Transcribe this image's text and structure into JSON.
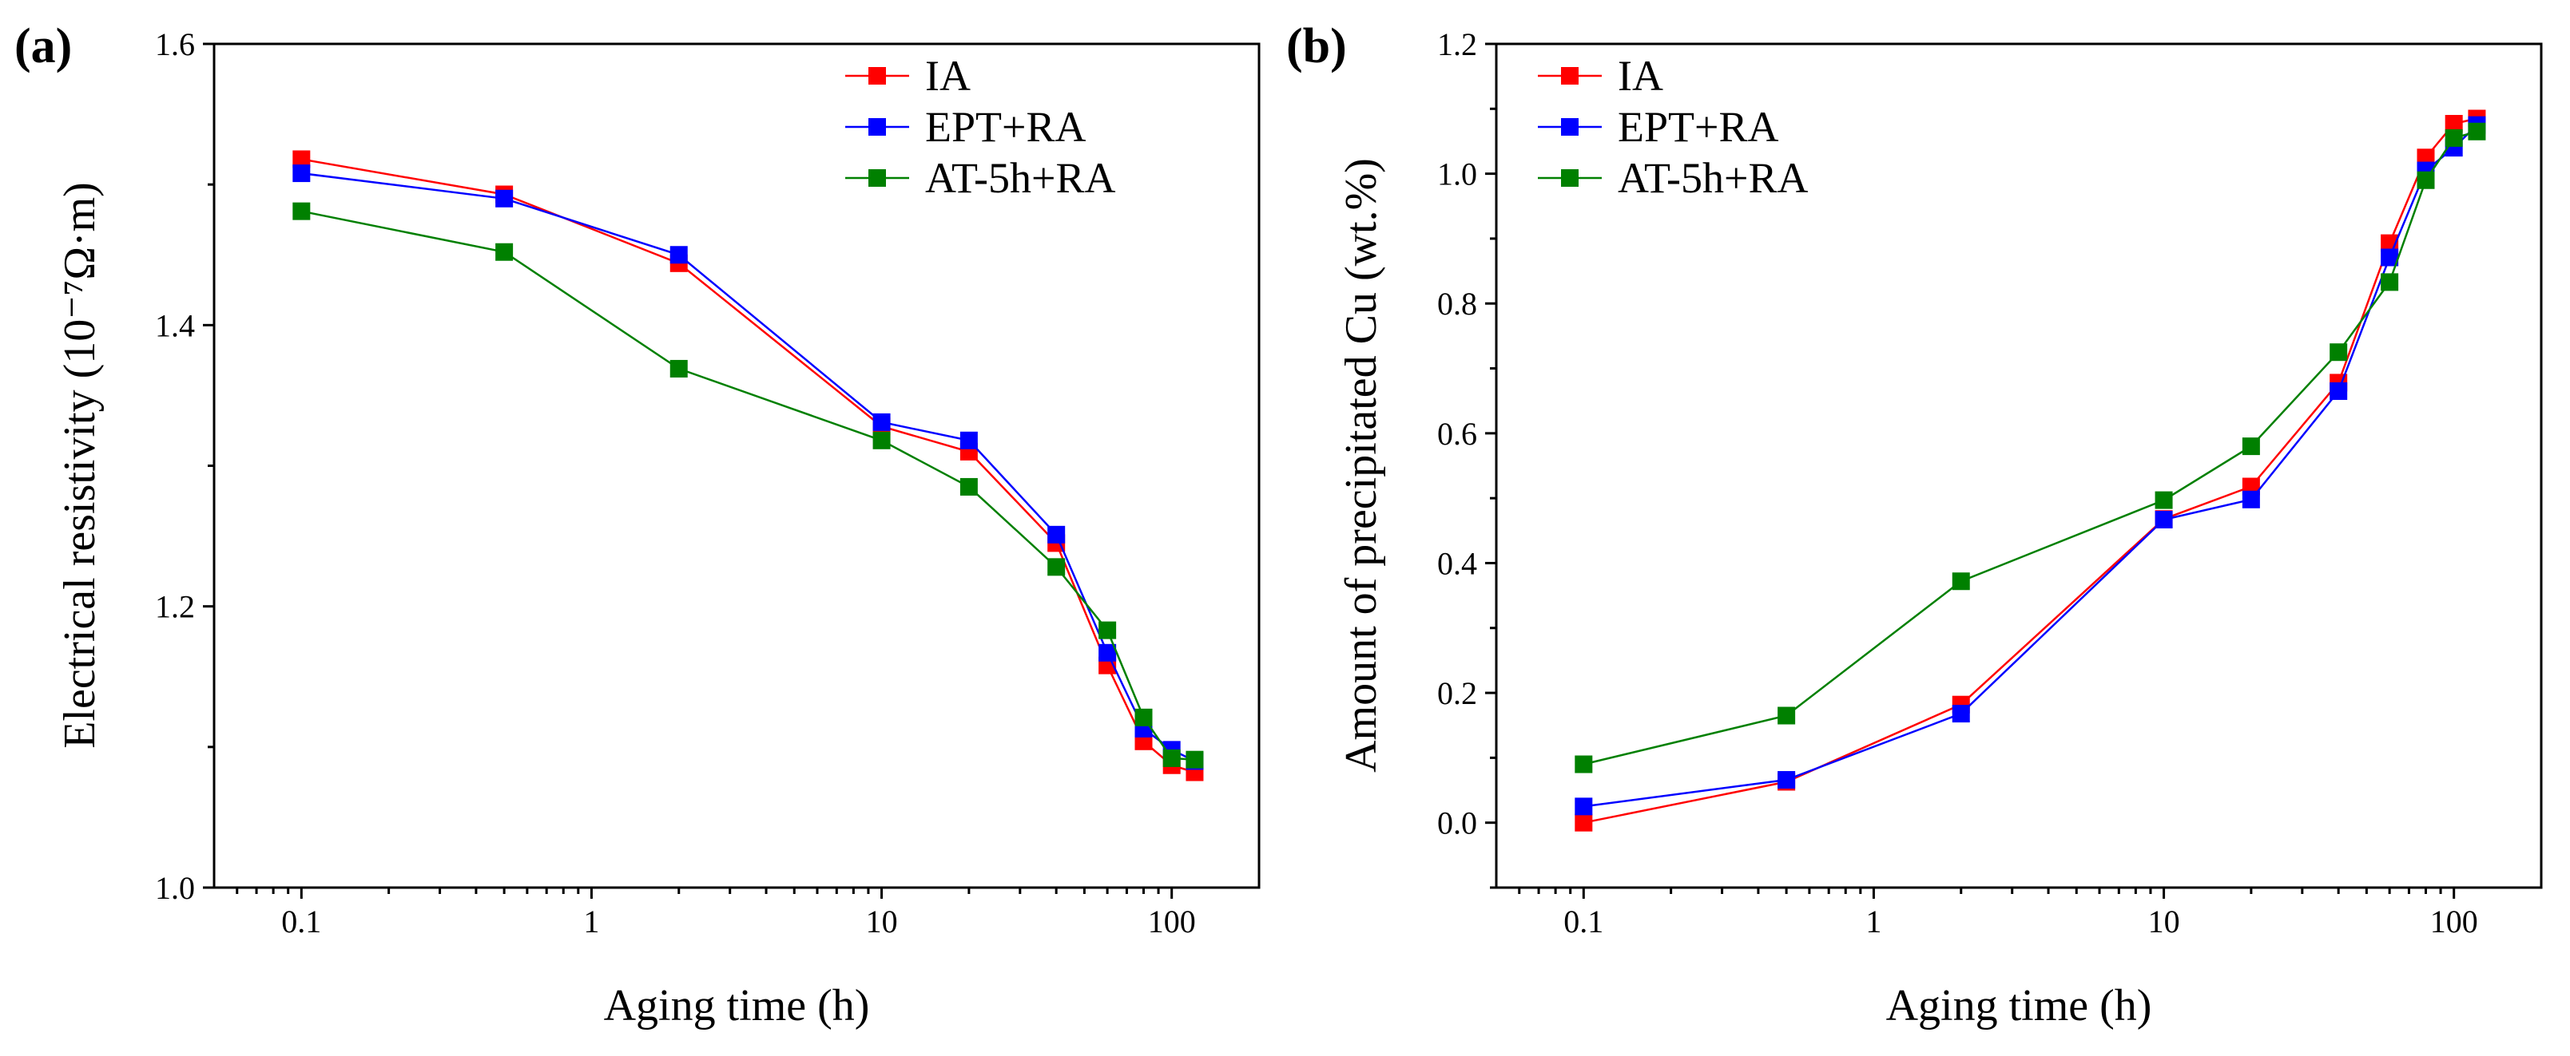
{
  "chart_data": [
    {
      "type": "line",
      "panel_label": "(a)",
      "xlabel": "Aging time (h)",
      "ylabel": "Electrical resistivity (10⁻⁷Ω·m)",
      "xscale": "log",
      "xlim": [
        0.05,
        200
      ],
      "ylim": [
        1.0,
        1.6
      ],
      "xticks": [
        0.1,
        1,
        10,
        100
      ],
      "xtick_labels": [
        "0.1",
        "1",
        "10",
        "100"
      ],
      "yticks": [
        1.0,
        1.2,
        1.4,
        1.6
      ],
      "ytick_labels": [
        "1.0",
        "1.2",
        "1.4",
        "1.6"
      ],
      "legend_position": "top-right",
      "x": [
        0.1,
        0.5,
        2,
        10,
        20,
        40,
        60,
        80,
        100,
        120
      ],
      "series": [
        {
          "name": "IA",
          "color": "#ff0000",
          "values": [
            1.518,
            1.493,
            1.444,
            1.328,
            1.31,
            1.245,
            1.158,
            1.104,
            1.087,
            1.082
          ]
        },
        {
          "name": "EPT+RA",
          "color": "#0000ff",
          "values": [
            1.508,
            1.49,
            1.45,
            1.331,
            1.318,
            1.251,
            1.167,
            1.113,
            1.098,
            1.09
          ]
        },
        {
          "name": "AT-5h+RA",
          "color": "#008000",
          "values": [
            1.481,
            1.452,
            1.369,
            1.318,
            1.285,
            1.228,
            1.183,
            1.121,
            1.092,
            1.091
          ]
        }
      ]
    },
    {
      "type": "line",
      "panel_label": "(b)",
      "xlabel": "Aging time (h)",
      "ylabel": "Amount of precipitated Cu (wt.%)",
      "xscale": "log",
      "xlim": [
        0.05,
        200
      ],
      "ylim": [
        -0.1,
        1.2
      ],
      "xticks": [
        0.1,
        1,
        10,
        100
      ],
      "xtick_labels": [
        "0.1",
        "1",
        "10",
        "100"
      ],
      "yticks": [
        0.0,
        0.2,
        0.4,
        0.6,
        0.8,
        1.0,
        1.2
      ],
      "ytick_labels": [
        "0.0",
        "0.2",
        "0.4",
        "0.6",
        "0.8",
        "1.0",
        "1.2"
      ],
      "legend_position": "top-left",
      "x": [
        0.1,
        0.5,
        2,
        10,
        20,
        40,
        60,
        80,
        100,
        120
      ],
      "series": [
        {
          "name": "IA",
          "color": "#ff0000",
          "values": [
            0.0,
            0.063,
            0.182,
            0.468,
            0.518,
            0.678,
            0.893,
            1.025,
            1.077,
            1.085
          ]
        },
        {
          "name": "EPT+RA",
          "color": "#0000ff",
          "values": [
            0.025,
            0.066,
            0.168,
            0.467,
            0.498,
            0.665,
            0.871,
            1.005,
            1.04,
            1.075
          ]
        },
        {
          "name": "AT-5h+RA",
          "color": "#008000",
          "values": [
            0.09,
            0.165,
            0.372,
            0.497,
            0.58,
            0.725,
            0.833,
            0.99,
            1.055,
            1.065
          ]
        }
      ]
    }
  ]
}
